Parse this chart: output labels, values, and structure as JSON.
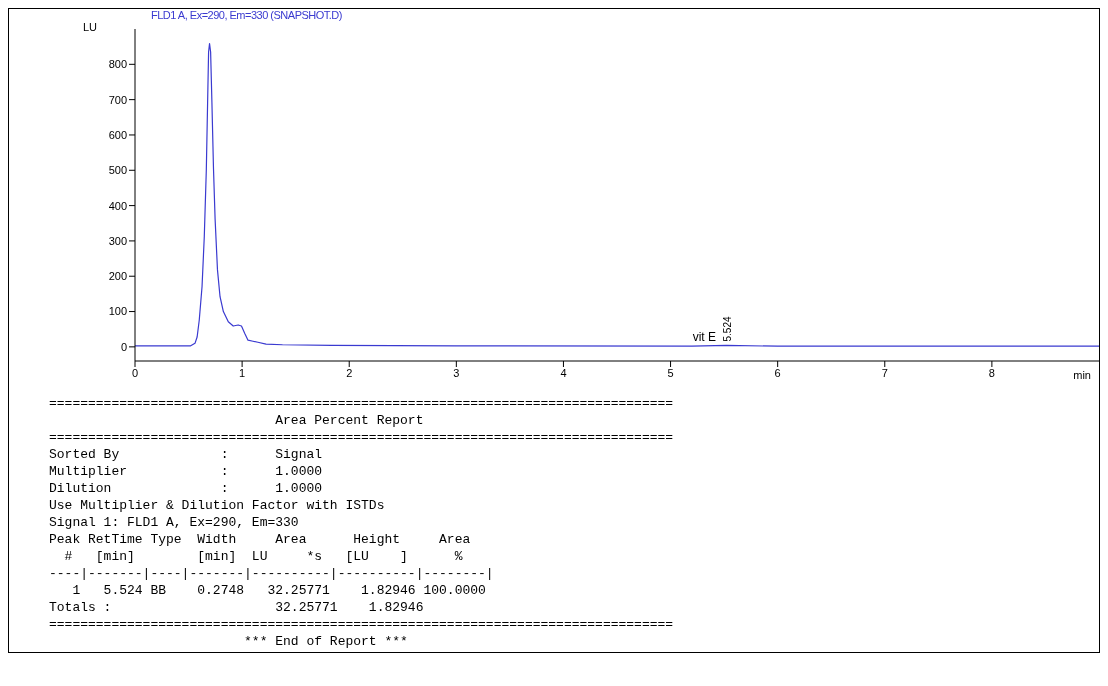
{
  "chart_data": {
    "type": "line",
    "title": "FLD1 A, Ex=290, Em=330 (SNAPSHOT.D)",
    "xlabel": "min",
    "ylabel": "LU",
    "series": [
      {
        "color": "#3a3ad0",
        "x": [
          0,
          0.52,
          0.56,
          0.58,
          0.6,
          0.626,
          0.647,
          0.666,
          0.678,
          0.687,
          0.696,
          0.706,
          0.718,
          0.733,
          0.748,
          0.77,
          0.794,
          0.825,
          0.871,
          0.917,
          0.963,
          0.994,
          1.025,
          1.055,
          1.101,
          1.147,
          1.224,
          1.377,
          1.837,
          3,
          5.2,
          5.524,
          6,
          9
        ],
        "values": [
          3,
          3,
          10,
          28,
          76,
          171,
          313,
          503,
          693,
          835,
          859,
          835,
          693,
          503,
          361,
          218,
          142,
          100,
          71,
          59,
          62,
          59,
          38,
          19,
          16,
          13,
          8,
          6,
          4,
          3,
          2,
          4,
          2,
          2
        ]
      }
    ],
    "xlim": [
      0,
      9
    ],
    "xticks": [
      0,
      1,
      2,
      3,
      4,
      5,
      6,
      7,
      8
    ],
    "ylim": [
      -40,
      900
    ],
    "yticks": [
      0,
      100,
      200,
      300,
      400,
      500,
      600,
      700,
      800
    ],
    "marker": "none",
    "line_style": "solid",
    "annotations": [
      {
        "text": "vit E",
        "x": 5.524,
        "y": 4
      },
      {
        "text": "5.524",
        "x": 5.524,
        "y": 4
      },
      "================================================================================",
      "                             Area Percent Report",
      "================================================================================",
      "Sorted By             :      Signal",
      "Multiplier            :      1.0000",
      "Dilution              :      1.0000",
      "Use Multiplier & Dilution Factor with ISTDs",
      "Signal 1: FLD1 A, Ex=290, Em=330",
      "Peak RetTime Type  Width     Area      Height     Area",
      "  #   [min]        [min]  LU     *s   [LU    ]      %",
      "----|-------|----|-------|----------|----------|--------|",
      "   1   5.524 BB    0.2748   32.25771    1.82946 100.0000",
      "Totals :                     32.25771    1.82946",
      "================================================================================",
      "                         *** End of Report ***"
    ]
  }
}
